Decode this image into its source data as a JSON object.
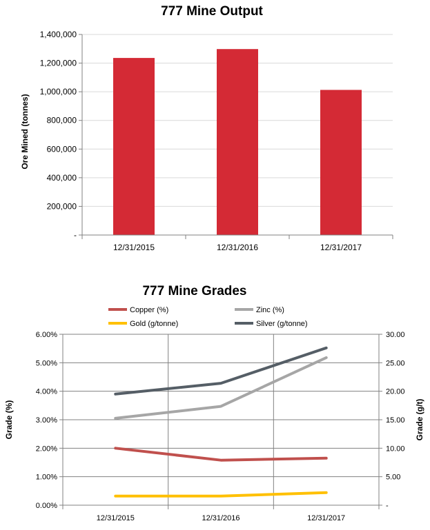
{
  "chart_data": [
    {
      "type": "bar",
      "title": "777 Mine Output",
      "xlabel": "",
      "ylabel": "Ore Mined (tonnes)",
      "categories": [
        "12/31/2015",
        "12/31/2016",
        "12/31/2017"
      ],
      "values": [
        1236000,
        1298000,
        1013000
      ],
      "ylim": [
        0,
        1400000
      ],
      "yticks": [
        "-",
        "200,000",
        "400,000",
        "600,000",
        "800,000",
        "1,000,000",
        "1,200,000",
        "1,400,000"
      ],
      "bar_color": "#d42a35",
      "grid": true
    },
    {
      "type": "line",
      "title": "777 Mine Grades",
      "xlabel": "",
      "ylabel": "Grade (%)",
      "y2label": "Grade (g/t)",
      "categories": [
        "12/31/2015",
        "12/31/2016",
        "12/31/2017"
      ],
      "ylim": [
        0,
        6
      ],
      "y2lim": [
        0,
        30
      ],
      "yticks": [
        "0.00%",
        "1.00%",
        "2.00%",
        "3.00%",
        "4.00%",
        "5.00%",
        "6.00%"
      ],
      "y2ticks": [
        "-",
        "5.00",
        "10.00",
        "15.00",
        "20.00",
        "25.00",
        "30.00"
      ],
      "grid": true,
      "legend_position": "top",
      "series": [
        {
          "name": "Copper (%)",
          "axis": "left",
          "color": "#c0504d",
          "values": [
            2.0,
            1.58,
            1.65
          ]
        },
        {
          "name": "Zinc (%)",
          "axis": "left",
          "color": "#a6a6a6",
          "values": [
            3.05,
            3.47,
            5.18
          ]
        },
        {
          "name": "Gold (g/tonne)",
          "axis": "right",
          "color": "#ffc000",
          "values": [
            1.6,
            1.6,
            2.2
          ]
        },
        {
          "name": "Silver (g/tonne)",
          "axis": "right",
          "color": "#555e66",
          "values": [
            19.5,
            21.4,
            27.6
          ]
        }
      ]
    }
  ]
}
